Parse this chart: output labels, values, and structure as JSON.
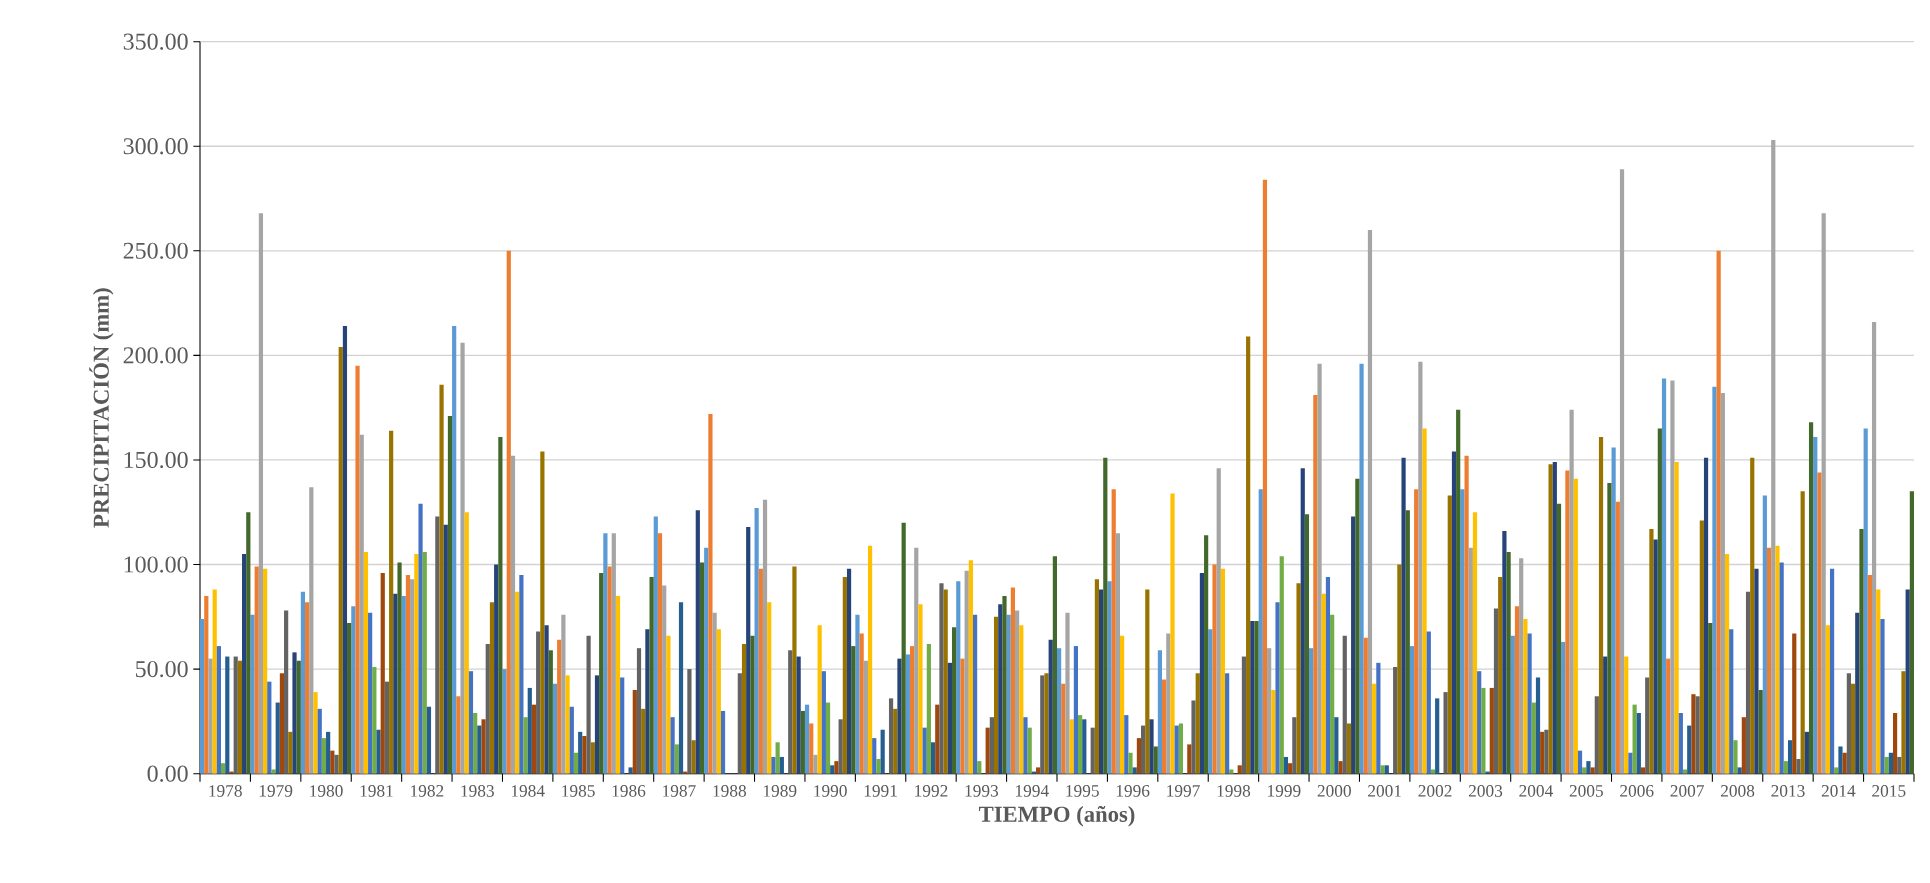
{
  "chart_data": {
    "type": "bar",
    "xlabel": "TIEMPO (años)",
    "ylabel": "PRECIPITACIÓN (mm)",
    "categories": [
      "1978",
      "1979",
      "1980",
      "1981",
      "1982",
      "1983",
      "1984",
      "1985",
      "1986",
      "1987",
      "1988",
      "1989",
      "1990",
      "1991",
      "1992",
      "1993",
      "1994",
      "1995",
      "1996",
      "1997",
      "1998",
      "1999",
      "2000",
      "2001",
      "2002",
      "2003",
      "2004",
      "2005",
      "2006",
      "2007",
      "2008",
      "2013",
      "2014",
      "2015"
    ],
    "series": [
      {
        "color": "#5b9bd5",
        "values": [
          74,
          76,
          87,
          80,
          85,
          214,
          50,
          43,
          115,
          123,
          108,
          127,
          33,
          76,
          57,
          92,
          76,
          60,
          92,
          59,
          69,
          136,
          60,
          196,
          61,
          136,
          66,
          63,
          156,
          189,
          185,
          133,
          161,
          165
        ]
      },
      {
        "color": "#ed7d31",
        "values": [
          85,
          99,
          82,
          195,
          95,
          37,
          250,
          64,
          99,
          115,
          172,
          98,
          24,
          67,
          61,
          55,
          89,
          43,
          136,
          45,
          100,
          284,
          181,
          65,
          136,
          152,
          80,
          145,
          130,
          55,
          250,
          108,
          144,
          95
        ]
      },
      {
        "color": "#a5a5a5",
        "values": [
          55,
          268,
          137,
          162,
          93,
          206,
          152,
          76,
          115,
          90,
          77,
          131,
          9,
          54,
          108,
          97,
          78,
          77,
          115,
          67,
          146,
          60,
          196,
          260,
          197,
          108,
          103,
          174,
          289,
          188,
          182,
          303,
          268,
          216
        ]
      },
      {
        "color": "#ffc000",
        "values": [
          88,
          98,
          39,
          106,
          105,
          125,
          87,
          47,
          85,
          66,
          69,
          82,
          71,
          109,
          81,
          102,
          71,
          26,
          66,
          134,
          98,
          40,
          86,
          43,
          165,
          125,
          74,
          141,
          56,
          149,
          105,
          109,
          71,
          88
        ]
      },
      {
        "color": "#4472c4",
        "values": [
          61,
          44,
          31,
          77,
          129,
          49,
          95,
          32,
          46,
          27,
          30,
          8,
          49,
          17,
          22,
          76,
          27,
          61,
          28,
          23,
          48,
          82,
          94,
          53,
          68,
          49,
          67,
          11,
          10,
          29,
          69,
          101,
          98,
          74
        ]
      },
      {
        "color": "#70ad47",
        "values": [
          5,
          2,
          17,
          51,
          106,
          29,
          27,
          10,
          0,
          14,
          0,
          15,
          34,
          7,
          62,
          6,
          22,
          28,
          10,
          24,
          2,
          104,
          76,
          4,
          2,
          41,
          34,
          3,
          33,
          2,
          16,
          6,
          3,
          8
        ]
      },
      {
        "color": "#255e91",
        "values": [
          56,
          34,
          20,
          21,
          32,
          23,
          41,
          20,
          3,
          82,
          0,
          8,
          4,
          21,
          15,
          0,
          1,
          26,
          3,
          0,
          0,
          8,
          27,
          4,
          36,
          1,
          46,
          6,
          29,
          23,
          3,
          16,
          13,
          10
        ]
      },
      {
        "color": "#9e480e",
        "values": [
          1,
          48,
          11,
          96,
          0,
          26,
          33,
          18,
          40,
          1,
          0,
          0,
          6,
          0,
          33,
          22,
          3,
          0,
          17,
          14,
          4,
          5,
          6,
          0,
          0,
          41,
          20,
          3,
          3,
          38,
          27,
          67,
          10,
          29
        ]
      },
      {
        "color": "#636363",
        "values": [
          56,
          78,
          9,
          44,
          123,
          62,
          68,
          66,
          60,
          50,
          48,
          59,
          26,
          36,
          91,
          27,
          47,
          22,
          23,
          35,
          56,
          27,
          66,
          51,
          39,
          79,
          21,
          37,
          46,
          37,
          87,
          7,
          48,
          8
        ]
      },
      {
        "color": "#997300",
        "values": [
          54,
          20,
          204,
          164,
          186,
          82,
          154,
          15,
          31,
          16,
          62,
          99,
          94,
          31,
          88,
          75,
          48,
          93,
          88,
          48,
          209,
          91,
          24,
          100,
          133,
          94,
          148,
          161,
          117,
          121,
          151,
          135,
          43,
          49
        ]
      },
      {
        "color": "#264478",
        "values": [
          105,
          58,
          214,
          86,
          119,
          100,
          71,
          47,
          69,
          126,
          118,
          56,
          98,
          55,
          53,
          81,
          64,
          88,
          26,
          96,
          73,
          146,
          123,
          151,
          154,
          116,
          149,
          56,
          112,
          151,
          98,
          20,
          77,
          88
        ]
      },
      {
        "color": "#43682b",
        "values": [
          125,
          54,
          72,
          101,
          171,
          161,
          59,
          96,
          94,
          101,
          66,
          30,
          61,
          120,
          70,
          85,
          104,
          151,
          13,
          114,
          73,
          124,
          141,
          126,
          174,
          106,
          129,
          139,
          165,
          72,
          40,
          168,
          117,
          135
        ]
      }
    ],
    "ylim": [
      0,
      350
    ],
    "yticks": [
      {
        "value": 0,
        "label": "0.00"
      },
      {
        "value": 50,
        "label": "50.00"
      },
      {
        "value": 100,
        "label": "100.00"
      },
      {
        "value": 150,
        "label": "150.00"
      },
      {
        "value": 200,
        "label": "200.00"
      },
      {
        "value": 250,
        "label": "250.00"
      },
      {
        "value": 300,
        "label": "300.00"
      },
      {
        "value": 350,
        "label": "350.00"
      }
    ],
    "grid": "y"
  }
}
